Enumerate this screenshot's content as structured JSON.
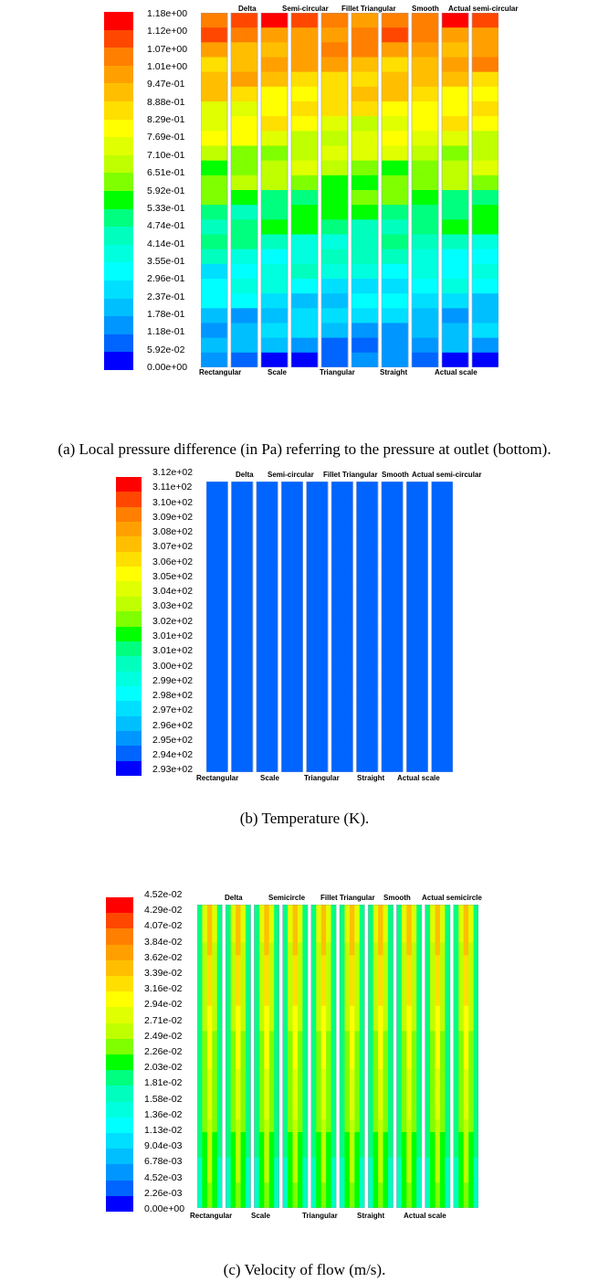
{
  "chart_data": [
    {
      "type": "heatmap",
      "caption": "(a) Local pressure difference (in Pa) referring to the pressure at outlet (bottom).",
      "colorbar_labels": [
        "1.18e+00",
        "1.12e+00",
        "1.07e+00",
        "1.01e+00",
        "9.47e-01",
        "8.88e-01",
        "8.29e-01",
        "7.69e-01",
        "7.10e-01",
        "6.51e-01",
        "5.92e-01",
        "5.33e-01",
        "4.74e-01",
        "4.14e-01",
        "3.55e-01",
        "2.96e-01",
        "2.37e-01",
        "1.78e-01",
        "1.18e-01",
        "5.92e-02",
        "0.00e+00"
      ],
      "range": [
        0,
        1.18
      ],
      "top_labels": [
        "Delta",
        "Semi-circular",
        "Fillet Triangular",
        "Smooth",
        "Actual semi-circular"
      ],
      "bottom_labels": [
        "Rectangular",
        "Scale",
        "Triangular",
        "Straight",
        "Actual scale"
      ],
      "channels": [
        "Rectangular",
        "Delta",
        "Scale",
        "Semi-circular",
        "Triangular",
        "Fillet Triangular",
        "Straight",
        "Smooth",
        "Actual scale",
        "Actual semi-circular"
      ]
    },
    {
      "type": "heatmap",
      "caption": "(b) Temperature (K).",
      "colorbar_labels": [
        "3.12e+02",
        "3.11e+02",
        "3.10e+02",
        "3.09e+02",
        "3.08e+02",
        "3.07e+02",
        "3.06e+02",
        "3.05e+02",
        "3.04e+02",
        "3.03e+02",
        "3.02e+02",
        "3.01e+02",
        "3.01e+02",
        "3.00e+02",
        "2.99e+02",
        "2.98e+02",
        "2.97e+02",
        "2.96e+02",
        "2.95e+02",
        "2.94e+02",
        "2.93e+02"
      ],
      "range": [
        293,
        312
      ],
      "top_labels": [
        "Delta",
        "Semi-circular",
        "Fillet Triangular",
        "Smooth",
        "Actual semi-circular"
      ],
      "bottom_labels": [
        "Rectangular",
        "Scale",
        "Triangular",
        "Straight",
        "Actual scale"
      ],
      "channels": [
        "Rectangular",
        "Delta",
        "Scale",
        "Semi-circular",
        "Triangular",
        "Fillet Triangular",
        "Straight",
        "Smooth",
        "Actual scale",
        "Actual semi-circular"
      ]
    },
    {
      "type": "heatmap",
      "caption": "(c) Velocity of flow (m/s).",
      "colorbar_labels": [
        "4.52e-02",
        "4.29e-02",
        "4.07e-02",
        "3.84e-02",
        "3.62e-02",
        "3.39e-02",
        "3.16e-02",
        "2.94e-02",
        "2.71e-02",
        "2.49e-02",
        "2.26e-02",
        "2.03e-02",
        "1.81e-02",
        "1.58e-02",
        "1.36e-02",
        "1.13e-02",
        "9.04e-03",
        "6.78e-03",
        "4.52e-03",
        "2.26e-03",
        "0.00e+00"
      ],
      "range": [
        0,
        0.0452
      ],
      "top_labels": [
        "Delta",
        "Semicircle",
        "Fillet Triangular",
        "Smooth",
        "Actual semicircle"
      ],
      "bottom_labels": [
        "Rectangular",
        "Scale",
        "Triangular",
        "Straight",
        "Actual scale"
      ],
      "channels": [
        "Rectangular",
        "Delta",
        "Scale",
        "Semicircle",
        "Triangular",
        "Fillet Triangular",
        "Straight",
        "Smooth",
        "Actual scale",
        "Actual semicircle"
      ]
    }
  ],
  "colors": {
    "scale": [
      "#ff0000",
      "#ff4700",
      "#ff7f00",
      "#ffa000",
      "#ffbf00",
      "#ffdf00",
      "#ffff00",
      "#e0ff00",
      "#bfff00",
      "#7fff00",
      "#00ff00",
      "#00ff7f",
      "#00ffbf",
      "#00ffdf",
      "#00ffff",
      "#00dfff",
      "#00bfff",
      "#0096ff",
      "#0064ff",
      "#0000ff"
    ]
  }
}
